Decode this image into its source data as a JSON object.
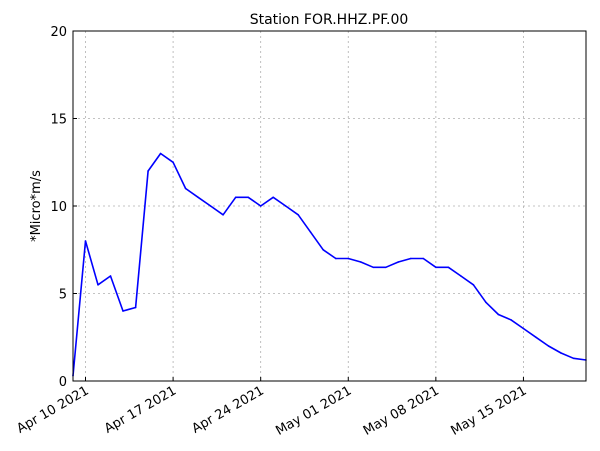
{
  "chart_data": {
    "type": "line",
    "title": "Station FOR.HHZ.PF.00",
    "ylabel": "*Micro*m/s",
    "xlabel": "",
    "ylim": [
      0,
      20
    ],
    "yticks": [
      0,
      5,
      10,
      15,
      20
    ],
    "xlim": [
      "2021-04-09",
      "2021-05-20"
    ],
    "xticks": [
      "2021-04-10",
      "2021-04-17",
      "2021-04-24",
      "2021-05-01",
      "2021-05-08",
      "2021-05-15"
    ],
    "xtick_labels": [
      "Apr 10 2021",
      "Apr 17 2021",
      "Apr 24 2021",
      "May 01 2021",
      "May 08 2021",
      "May 15 2021"
    ],
    "grid": true,
    "series_color": "#0000ff",
    "series": [
      {
        "x": [
          "2021-04-09",
          "2021-04-10",
          "2021-04-11",
          "2021-04-12",
          "2021-04-13",
          "2021-04-14",
          "2021-04-15",
          "2021-04-16",
          "2021-04-17",
          "2021-04-18",
          "2021-04-19",
          "2021-04-20",
          "2021-04-21",
          "2021-04-22",
          "2021-04-23",
          "2021-04-24",
          "2021-04-25",
          "2021-04-26",
          "2021-04-27",
          "2021-04-28",
          "2021-04-29",
          "2021-04-30",
          "2021-05-01",
          "2021-05-02",
          "2021-05-03",
          "2021-05-04",
          "2021-05-05",
          "2021-05-06",
          "2021-05-07",
          "2021-05-08",
          "2021-05-09",
          "2021-05-10",
          "2021-05-11",
          "2021-05-12",
          "2021-05-13",
          "2021-05-14",
          "2021-05-15",
          "2021-05-16",
          "2021-05-17",
          "2021-05-18",
          "2021-05-19",
          "2021-05-20"
        ],
        "values": [
          0.3,
          8.0,
          5.5,
          6.0,
          4.0,
          4.2,
          12.0,
          13.0,
          12.5,
          11.0,
          10.5,
          10.0,
          9.5,
          10.5,
          10.5,
          10.0,
          10.5,
          10.0,
          9.5,
          8.5,
          7.5,
          7.0,
          7.0,
          6.8,
          6.5,
          6.5,
          6.8,
          7.0,
          7.0,
          6.5,
          6.5,
          6.0,
          5.5,
          4.5,
          3.8,
          3.5,
          3.0,
          2.5,
          2.0,
          1.6,
          1.3,
          1.2
        ]
      }
    ]
  }
}
